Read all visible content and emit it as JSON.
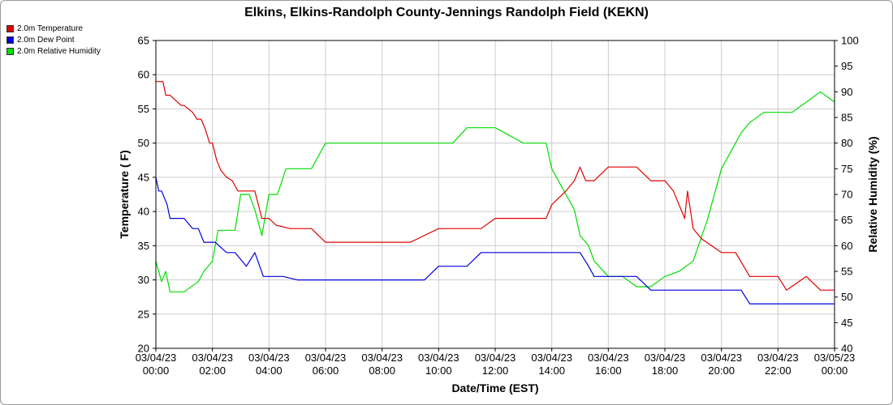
{
  "chart_data": {
    "type": "line",
    "title": "Elkins, Elkins-Randolph County-Jennings Randolph Field (KEKN)",
    "xlabel": "Date/Time (EST)",
    "ylabel_left": "Temperature ( F)",
    "ylabel_right": "Relative Humidity (%)",
    "ylim_left": [
      20,
      65
    ],
    "ylim_right": [
      40,
      100
    ],
    "xlim_hours": [
      0,
      24
    ],
    "grid": true,
    "legend_position": "top-left",
    "x_ticks": [
      {
        "date": "03/04/23",
        "time": "00:00"
      },
      {
        "date": "03/04/23",
        "time": "02:00"
      },
      {
        "date": "03/04/23",
        "time": "04:00"
      },
      {
        "date": "03/04/23",
        "time": "06:00"
      },
      {
        "date": "03/04/23",
        "time": "08:00"
      },
      {
        "date": "03/04/23",
        "time": "10:00"
      },
      {
        "date": "03/04/23",
        "time": "12:00"
      },
      {
        "date": "03/04/23",
        "time": "14:00"
      },
      {
        "date": "03/04/23",
        "time": "16:00"
      },
      {
        "date": "03/04/23",
        "time": "18:00"
      },
      {
        "date": "03/04/23",
        "time": "20:00"
      },
      {
        "date": "03/04/23",
        "time": "22:00"
      },
      {
        "date": "03/05/23",
        "time": "00:00"
      }
    ],
    "y_ticks_left": [
      "20",
      "25",
      "30",
      "35",
      "40",
      "45",
      "50",
      "55",
      "60",
      "65"
    ],
    "y_ticks_right": [
      "40",
      "45",
      "50",
      "55",
      "60",
      "65",
      "70",
      "75",
      "80",
      "85",
      "90",
      "95",
      "100"
    ],
    "series": [
      {
        "name": "2.0m Temperature",
        "color": "#e00000",
        "axis": "left",
        "x": [
          0,
          0.25,
          0.35,
          0.5,
          0.9,
          1.0,
          1.3,
          1.45,
          1.6,
          1.75,
          1.9,
          2.0,
          2.15,
          2.3,
          2.5,
          2.7,
          2.9,
          3.0,
          3.5,
          3.75,
          4.0,
          4.25,
          4.75,
          5.0,
          5.5,
          6.0,
          7.0,
          8.0,
          9.0,
          10.0,
          11.0,
          11.5,
          12.0,
          13.0,
          13.5,
          13.8,
          14.0,
          14.5,
          14.8,
          15.0,
          15.2,
          15.5,
          16.0,
          17.0,
          17.5,
          18.0,
          18.3,
          18.5,
          18.7,
          18.8,
          19.0,
          19.3,
          20.0,
          20.5,
          21.0,
          21.5,
          22.0,
          22.3,
          23.0,
          23.5,
          24.0
        ],
        "y": [
          59,
          59,
          57,
          57,
          55.5,
          55.5,
          54.5,
          53.5,
          53.5,
          52,
          50,
          50,
          47.5,
          46,
          45,
          44.5,
          43,
          43,
          43,
          39,
          39,
          38,
          37.5,
          37.5,
          37.5,
          35.5,
          35.5,
          35.5,
          35.5,
          37.5,
          37.5,
          37.5,
          39,
          39,
          39,
          39,
          41,
          43,
          44.5,
          46.5,
          44.5,
          44.5,
          46.5,
          46.5,
          44.5,
          44.5,
          43,
          41,
          39,
          43,
          37.5,
          36,
          34,
          34,
          30.5,
          30.5,
          30.5,
          28.5,
          30.5,
          28.5,
          28.5
        ]
      },
      {
        "name": "2.0m Dew Point",
        "color": "#0000dd",
        "axis": "left",
        "x": [
          0,
          0.1,
          0.2,
          0.4,
          0.5,
          1.0,
          1.3,
          1.5,
          1.7,
          2.0,
          2.1,
          2.5,
          2.8,
          3.2,
          3.5,
          3.8,
          4.0,
          4.5,
          5.0,
          6.0,
          7.0,
          8.0,
          9.0,
          9.5,
          10.0,
          11.0,
          11.5,
          12.0,
          12.5,
          13.0,
          13.5,
          14.0,
          14.5,
          14.7,
          15.0,
          15.3,
          15.5,
          15.8,
          16.0,
          17.0,
          17.5,
          18.0,
          19.0,
          20.0,
          20.3,
          20.7,
          21.0,
          21.5,
          22.0,
          23.0,
          23.5,
          23.8,
          24.0
        ],
        "y": [
          45,
          43,
          43,
          41,
          39,
          39,
          37.5,
          37.5,
          35.5,
          35.5,
          35.5,
          34,
          34,
          32,
          34,
          30.5,
          30.5,
          30.5,
          30,
          30,
          30,
          30,
          30,
          30,
          32,
          32,
          34,
          34,
          34,
          34,
          34,
          34,
          34,
          34,
          34,
          32,
          30.5,
          30.5,
          30.5,
          30.5,
          28.5,
          28.5,
          28.5,
          28.5,
          28.5,
          28.5,
          26.5,
          26.5,
          26.5,
          26.5,
          26.5,
          26.5,
          26.5
        ]
      },
      {
        "name": "2.0m Relative Humidity",
        "color": "#00dd00",
        "axis": "right",
        "x": [
          0,
          0.2,
          0.35,
          0.5,
          0.8,
          1.0,
          1.5,
          1.7,
          2.0,
          2.2,
          2.5,
          2.8,
          3.0,
          3.3,
          3.5,
          3.75,
          4.0,
          4.3,
          4.6,
          5.0,
          5.5,
          6.0,
          7.0,
          8.0,
          9.0,
          9.5,
          10.0,
          10.5,
          11.0,
          11.5,
          12.0,
          13.0,
          13.5,
          13.8,
          14.0,
          14.3,
          14.8,
          15.0,
          15.3,
          15.5,
          16.0,
          16.5,
          17.0,
          17.5,
          18.0,
          18.5,
          19.0,
          19.5,
          20.0,
          20.3,
          20.7,
          21.0,
          21.5,
          22.0,
          22.5,
          23.0,
          23.5,
          24.0
        ],
        "y": [
          57,
          53,
          55,
          51,
          51,
          51,
          53,
          55,
          57,
          63,
          63,
          63,
          70,
          70,
          67,
          62,
          70,
          70,
          75,
          75,
          75,
          80,
          80,
          80,
          80,
          80,
          80,
          80,
          83,
          83,
          83,
          80,
          80,
          80,
          75,
          72,
          67,
          62,
          60,
          57,
          54,
          54,
          52,
          52,
          54,
          55,
          57,
          65,
          75,
          78,
          82,
          84,
          86,
          86,
          86,
          88,
          90,
          88
        ]
      }
    ]
  }
}
